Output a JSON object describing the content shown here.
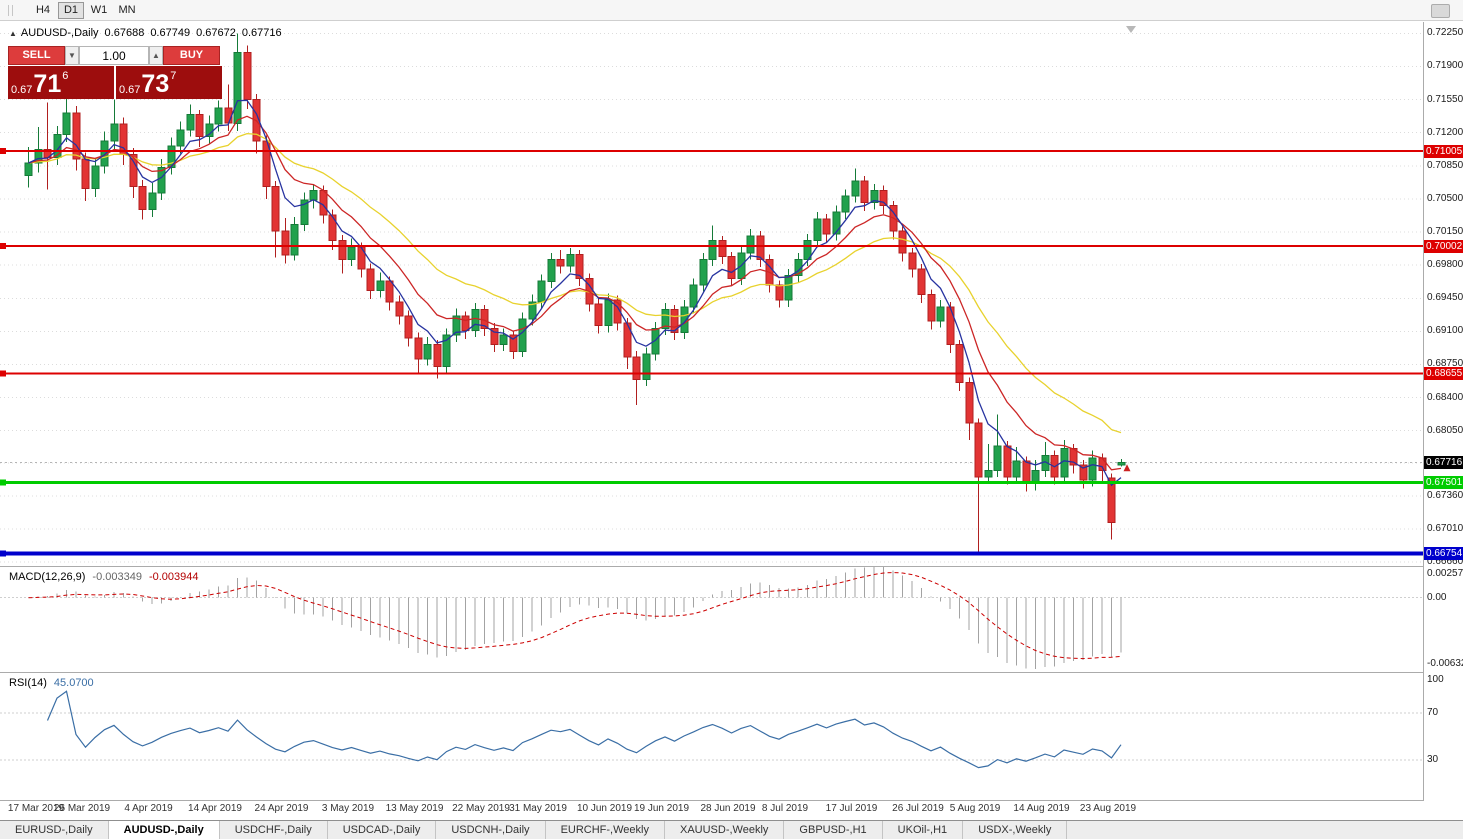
{
  "top_toolbar": {
    "timeframes": [
      {
        "label": "H4",
        "active": false
      },
      {
        "label": "D1",
        "active": true
      },
      {
        "label": "W1",
        "active": false
      },
      {
        "label": "MN",
        "active": false
      }
    ]
  },
  "chart_title": {
    "collapse_icon": "▲",
    "symbol": "AUDUSD-,Daily",
    "open": "0.67688",
    "high": "0.67749",
    "low": "0.67672",
    "close": "0.67716"
  },
  "trade_panel": {
    "sell_label": "SELL",
    "buy_label": "BUY",
    "volume": "1.00",
    "down_arrow": "▼",
    "up_arrow": "▲",
    "sell_quote": {
      "prefix": "0.67",
      "big": "71",
      "sup": "6"
    },
    "buy_quote": {
      "prefix": "0.67",
      "big": "73",
      "sup": "7"
    }
  },
  "macd_panel": {
    "title": "MACD(12,26,9)",
    "value_main": "-0.003349",
    "value_signal": "-0.003944",
    "axis_labels": [
      {
        "label": "0.002574",
        "value": 0.002574
      },
      {
        "label": "0.00",
        "value": 0
      },
      {
        "label": "-0.006326",
        "value": -0.006326
      }
    ]
  },
  "rsi_panel": {
    "title": "RSI(14)",
    "value": "45.0700",
    "axis_labels": [
      {
        "label": "100",
        "value": 100
      },
      {
        "label": "70",
        "value": 70
      },
      {
        "label": "30",
        "value": 30
      }
    ],
    "levels": [
      70,
      30
    ]
  },
  "tabs": [
    {
      "label": "EURUSD-,Daily",
      "active": false
    },
    {
      "label": "AUDUSD-,Daily",
      "active": true
    },
    {
      "label": "USDCHF-,Daily",
      "active": false
    },
    {
      "label": "USDCAD-,Daily",
      "active": false
    },
    {
      "label": "USDCNH-,Daily",
      "active": false
    },
    {
      "label": "EURCHF-,Weekly",
      "active": false
    },
    {
      "label": "XAUUSD-,Weekly",
      "active": false
    },
    {
      "label": "GBPUSD-,H1",
      "active": false
    },
    {
      "label": "UKOil-,H1",
      "active": false
    },
    {
      "label": "USDX-,Weekly",
      "active": false
    }
  ],
  "chart_data": {
    "type": "candlestick",
    "symbol": "AUDUSD",
    "timeframe": "Daily",
    "price_axis": {
      "top_edge": 0.7237,
      "bottom_edge": 0.6662,
      "ticks": [
        {
          "label": "0.72250",
          "value": 0.7225
        },
        {
          "label": "0.71900",
          "value": 0.719
        },
        {
          "label": "0.71550",
          "value": 0.7155
        },
        {
          "label": "0.71200",
          "value": 0.712
        },
        {
          "label": "0.70850",
          "value": 0.7085
        },
        {
          "label": "0.70500",
          "value": 0.705
        },
        {
          "label": "0.70150",
          "value": 0.7015
        },
        {
          "label": "0.69800",
          "value": 0.698
        },
        {
          "label": "0.69450",
          "value": 0.6945
        },
        {
          "label": "0.69100",
          "value": 0.691
        },
        {
          "label": "0.68750",
          "value": 0.6875
        },
        {
          "label": "0.68400",
          "value": 0.684
        },
        {
          "label": "0.68050",
          "value": 0.6805
        },
        {
          "label": "0.67710",
          "value": 0.6771
        },
        {
          "label": "0.67360",
          "value": 0.6736
        },
        {
          "label": "0.67010",
          "value": 0.6701
        },
        {
          "label": "0.66660",
          "value": 0.6666
        }
      ]
    },
    "hlines": [
      {
        "label": "0.71005",
        "value": 0.71005,
        "color": "#dd0000",
        "width": 2
      },
      {
        "label": "0.70002",
        "value": 0.70002,
        "color": "#dd0000",
        "width": 2
      },
      {
        "label": "0.68655",
        "value": 0.68655,
        "color": "#dd0000",
        "width": 2
      },
      {
        "label": "0.67501",
        "value": 0.67501,
        "color": "#00cc00",
        "width": 3
      },
      {
        "label": "0.66754",
        "value": 0.66754,
        "color": "#0000cc",
        "width": 4
      }
    ],
    "last_price": {
      "label": "0.67716",
      "value": 0.67716,
      "box_color": "#000000"
    },
    "moving_averages": [
      {
        "period": 21,
        "color": "#e8d22e"
      },
      {
        "period": 10,
        "color": "#cc2626"
      },
      {
        "period": 5,
        "color": "#2733a0"
      }
    ],
    "macd": {
      "fast": 12,
      "slow": 26,
      "signal": 9,
      "histogram_color": "#a3a3a3",
      "signal_color": "#cc0000",
      "scale_max": 0.00268,
      "scale_min": -0.0065
    },
    "rsi": {
      "period": 14,
      "color": "#3a6ea5",
      "scale_max": 104,
      "scale_min": -4
    },
    "date_labels": [
      {
        "label": "17 Mar 2019",
        "index": 0
      },
      {
        "label": "26 Mar 2019",
        "index": 6
      },
      {
        "label": "4 Apr 2019",
        "index": 13
      },
      {
        "label": "14 Apr 2019",
        "index": 20
      },
      {
        "label": "24 Apr 2019",
        "index": 27
      },
      {
        "label": "3 May 2019",
        "index": 34
      },
      {
        "label": "13 May 2019",
        "index": 41
      },
      {
        "label": "22 May 2019",
        "index": 48
      },
      {
        "label": "31 May 2019",
        "index": 54
      },
      {
        "label": "10 Jun 2019",
        "index": 61
      },
      {
        "label": "19 Jun 2019",
        "index": 67
      },
      {
        "label": "28 Jun 2019",
        "index": 74
      },
      {
        "label": "8 Jul 2019",
        "index": 80
      },
      {
        "label": "17 Jul 2019",
        "index": 87
      },
      {
        "label": "26 Jul 2019",
        "index": 94
      },
      {
        "label": "5 Aug 2019",
        "index": 100
      },
      {
        "label": "14 Aug 2019",
        "index": 107
      },
      {
        "label": "23 Aug 2019",
        "index": 114
      }
    ],
    "candles": [
      [
        0.7075,
        0.7105,
        0.7062,
        0.7088
      ],
      [
        0.7088,
        0.7126,
        0.7078,
        0.7102
      ],
      [
        0.7102,
        0.7152,
        0.706,
        0.7094
      ],
      [
        0.7094,
        0.7127,
        0.7086,
        0.7118
      ],
      [
        0.7118,
        0.7156,
        0.711,
        0.7141
      ],
      [
        0.7141,
        0.7148,
        0.708,
        0.7092
      ],
      [
        0.7092,
        0.7099,
        0.7048,
        0.7061
      ],
      [
        0.7061,
        0.7093,
        0.7052,
        0.7085
      ],
      [
        0.7085,
        0.7121,
        0.7077,
        0.7111
      ],
      [
        0.7111,
        0.7155,
        0.7102,
        0.7129
      ],
      [
        0.7129,
        0.7136,
        0.7086,
        0.7097
      ],
      [
        0.7097,
        0.7104,
        0.7051,
        0.7063
      ],
      [
        0.7063,
        0.707,
        0.7028,
        0.7039
      ],
      [
        0.7039,
        0.7067,
        0.7031,
        0.7056
      ],
      [
        0.7056,
        0.7092,
        0.7049,
        0.7083
      ],
      [
        0.7083,
        0.7115,
        0.7076,
        0.7106
      ],
      [
        0.7106,
        0.7132,
        0.7098,
        0.7123
      ],
      [
        0.7123,
        0.715,
        0.7116,
        0.7139
      ],
      [
        0.7139,
        0.7144,
        0.7105,
        0.7116
      ],
      [
        0.7116,
        0.7138,
        0.7108,
        0.7129
      ],
      [
        0.7129,
        0.7154,
        0.7121,
        0.7146
      ],
      [
        0.7146,
        0.7171,
        0.7122,
        0.713
      ],
      [
        0.713,
        0.7225,
        0.7122,
        0.7205
      ],
      [
        0.7205,
        0.7212,
        0.7145,
        0.7155
      ],
      [
        0.7155,
        0.7161,
        0.7098,
        0.7111
      ],
      [
        0.7111,
        0.7117,
        0.705,
        0.7063
      ],
      [
        0.7063,
        0.7069,
        0.6988,
        0.7016
      ],
      [
        0.7016,
        0.703,
        0.6982,
        0.6991
      ],
      [
        0.6991,
        0.7031,
        0.6985,
        0.7023
      ],
      [
        0.7023,
        0.7057,
        0.7016,
        0.7049
      ],
      [
        0.7049,
        0.7066,
        0.704,
        0.7059
      ],
      [
        0.7059,
        0.7064,
        0.7024,
        0.7033
      ],
      [
        0.7033,
        0.7039,
        0.6996,
        0.7006
      ],
      [
        0.7006,
        0.7012,
        0.6971,
        0.6986
      ],
      [
        0.6986,
        0.7008,
        0.6979,
        0.6999
      ],
      [
        0.6999,
        0.7004,
        0.6967,
        0.6976
      ],
      [
        0.6976,
        0.6982,
        0.6944,
        0.6953
      ],
      [
        0.6953,
        0.6972,
        0.6946,
        0.6963
      ],
      [
        0.6963,
        0.6968,
        0.6932,
        0.6941
      ],
      [
        0.6941,
        0.6948,
        0.6917,
        0.6926
      ],
      [
        0.6926,
        0.6932,
        0.6894,
        0.6903
      ],
      [
        0.6903,
        0.6909,
        0.6865,
        0.6881
      ],
      [
        0.6881,
        0.6904,
        0.6874,
        0.6896
      ],
      [
        0.6896,
        0.6901,
        0.686,
        0.6873
      ],
      [
        0.6873,
        0.6913,
        0.6866,
        0.6906
      ],
      [
        0.6906,
        0.6934,
        0.6899,
        0.6926
      ],
      [
        0.6926,
        0.6931,
        0.6902,
        0.6911
      ],
      [
        0.6911,
        0.694,
        0.6904,
        0.6933
      ],
      [
        0.6933,
        0.6938,
        0.6905,
        0.6913
      ],
      [
        0.6913,
        0.6919,
        0.6888,
        0.6896
      ],
      [
        0.6896,
        0.6913,
        0.6889,
        0.6906
      ],
      [
        0.6906,
        0.6911,
        0.6881,
        0.6889
      ],
      [
        0.6889,
        0.693,
        0.6883,
        0.6923
      ],
      [
        0.6923,
        0.6949,
        0.6916,
        0.6941
      ],
      [
        0.6941,
        0.697,
        0.6934,
        0.6963
      ],
      [
        0.6963,
        0.6993,
        0.6956,
        0.6986
      ],
      [
        0.6986,
        0.6996,
        0.6971,
        0.6979
      ],
      [
        0.6979,
        0.6998,
        0.6972,
        0.6991
      ],
      [
        0.6991,
        0.6996,
        0.6958,
        0.6966
      ],
      [
        0.6966,
        0.6971,
        0.6931,
        0.6939
      ],
      [
        0.6939,
        0.6944,
        0.6908,
        0.6916
      ],
      [
        0.6916,
        0.695,
        0.6909,
        0.6943
      ],
      [
        0.6943,
        0.6948,
        0.6911,
        0.6919
      ],
      [
        0.6919,
        0.6924,
        0.687,
        0.6883
      ],
      [
        0.6883,
        0.6889,
        0.6832,
        0.6859
      ],
      [
        0.6859,
        0.6893,
        0.6852,
        0.6886
      ],
      [
        0.6886,
        0.692,
        0.6879,
        0.6913
      ],
      [
        0.6913,
        0.694,
        0.6906,
        0.6933
      ],
      [
        0.6933,
        0.6938,
        0.6901,
        0.6909
      ],
      [
        0.6909,
        0.6943,
        0.6902,
        0.6936
      ],
      [
        0.6936,
        0.6966,
        0.6929,
        0.6959
      ],
      [
        0.6959,
        0.6993,
        0.6952,
        0.6986
      ],
      [
        0.6986,
        0.7022,
        0.6979,
        0.7006
      ],
      [
        0.7006,
        0.7011,
        0.6981,
        0.6989
      ],
      [
        0.6989,
        0.6994,
        0.6958,
        0.6966
      ],
      [
        0.6966,
        0.7,
        0.6959,
        0.6993
      ],
      [
        0.6993,
        0.7018,
        0.6986,
        0.7011
      ],
      [
        0.7011,
        0.7016,
        0.6978,
        0.6986
      ],
      [
        0.6986,
        0.6991,
        0.6951,
        0.6959
      ],
      [
        0.6959,
        0.6964,
        0.6935,
        0.6943
      ],
      [
        0.6943,
        0.6976,
        0.6936,
        0.6969
      ],
      [
        0.6969,
        0.6993,
        0.6962,
        0.6986
      ],
      [
        0.6986,
        0.7013,
        0.6979,
        0.7006
      ],
      [
        0.7006,
        0.7036,
        0.6999,
        0.7029
      ],
      [
        0.7029,
        0.7034,
        0.7004,
        0.7013
      ],
      [
        0.7013,
        0.7043,
        0.7006,
        0.7036
      ],
      [
        0.7036,
        0.706,
        0.7029,
        0.7053
      ],
      [
        0.7053,
        0.7082,
        0.7046,
        0.7069
      ],
      [
        0.7069,
        0.7074,
        0.7037,
        0.7046
      ],
      [
        0.7046,
        0.7066,
        0.7039,
        0.7059
      ],
      [
        0.7059,
        0.7064,
        0.7034,
        0.7043
      ],
      [
        0.7043,
        0.7048,
        0.7007,
        0.7016
      ],
      [
        0.7016,
        0.7021,
        0.6984,
        0.6993
      ],
      [
        0.6993,
        0.6998,
        0.6967,
        0.6976
      ],
      [
        0.6976,
        0.6981,
        0.694,
        0.6949
      ],
      [
        0.6949,
        0.6954,
        0.6912,
        0.6921
      ],
      [
        0.6921,
        0.6943,
        0.6914,
        0.6936
      ],
      [
        0.6936,
        0.6941,
        0.6887,
        0.6896
      ],
      [
        0.6896,
        0.6901,
        0.6847,
        0.6856
      ],
      [
        0.6856,
        0.6861,
        0.6795,
        0.6813
      ],
      [
        0.6813,
        0.6818,
        0.6677,
        0.6756
      ],
      [
        0.6756,
        0.6791,
        0.6749,
        0.6763
      ],
      [
        0.6763,
        0.6822,
        0.6756,
        0.6789
      ],
      [
        0.6789,
        0.6794,
        0.6748,
        0.6756
      ],
      [
        0.6756,
        0.6788,
        0.6749,
        0.6773
      ],
      [
        0.6773,
        0.6778,
        0.6741,
        0.6749
      ],
      [
        0.6749,
        0.6774,
        0.6742,
        0.6763
      ],
      [
        0.6763,
        0.6793,
        0.6756,
        0.6779
      ],
      [
        0.6779,
        0.6784,
        0.6748,
        0.6756
      ],
      [
        0.6756,
        0.6795,
        0.6749,
        0.6786
      ],
      [
        0.6786,
        0.6791,
        0.676,
        0.6769
      ],
      [
        0.6769,
        0.6774,
        0.6744,
        0.6753
      ],
      [
        0.6753,
        0.6784,
        0.6746,
        0.6776
      ],
      [
        0.6776,
        0.6781,
        0.6752,
        0.6763
      ],
      [
        0.6755,
        0.676,
        0.669,
        0.6708
      ],
      [
        0.67688,
        0.67749,
        0.67672,
        0.67716
      ]
    ]
  }
}
